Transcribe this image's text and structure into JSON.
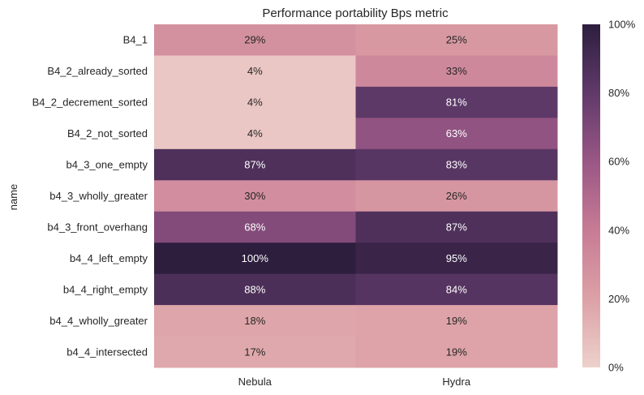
{
  "chart_data": {
    "type": "heatmap",
    "title": "Performance portability Bps metric",
    "ylabel": "name",
    "xlabel": "",
    "columns": [
      "Nebula",
      "Hydra"
    ],
    "rows": [
      "B4_1",
      "B4_2_already_sorted",
      "B4_2_decrement_sorted",
      "B4_2_not_sorted",
      "b4_3_one_empty",
      "b4_3_wholly_greater",
      "b4_3_front_overhang",
      "b4_4_left_empty",
      "b4_4_right_empty",
      "b4_4_wholly_greater",
      "b4_4_intersected"
    ],
    "values": [
      [
        29,
        25
      ],
      [
        4,
        33
      ],
      [
        4,
        81
      ],
      [
        4,
        63
      ],
      [
        87,
        83
      ],
      [
        30,
        26
      ],
      [
        68,
        87
      ],
      [
        100,
        95
      ],
      [
        88,
        84
      ],
      [
        18,
        19
      ],
      [
        17,
        19
      ]
    ],
    "value_suffix": "%",
    "colorbar": {
      "range": [
        0,
        100
      ],
      "ticks": [
        "0%",
        "20%",
        "40%",
        "60%",
        "80%",
        "100%"
      ],
      "low_color": "#edd1cb",
      "high_color": "#2d1e3e"
    }
  }
}
